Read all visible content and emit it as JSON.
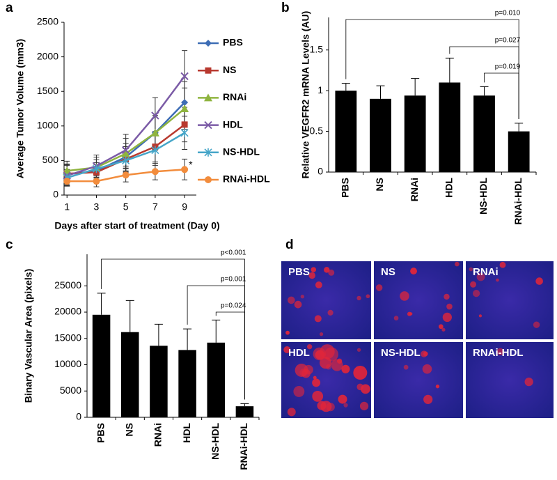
{
  "chart_data": [
    {
      "type": "line",
      "panel_label": "a",
      "x": [
        1,
        3,
        5,
        7,
        9
      ],
      "xlim": [
        0.8,
        9.8
      ],
      "xticks": [
        1,
        3,
        5,
        7,
        9
      ],
      "ylim": [
        0,
        2500
      ],
      "yticks": [
        0,
        500,
        1000,
        1500,
        2000,
        2500
      ],
      "xlabel": "Days after start of treatment (Day 0)",
      "ylabel": "Average Tumor Volume (mm3)",
      "annotation": "*",
      "legend": "right",
      "series": [
        {
          "name": "PBS",
          "color": "#3d6db5",
          "marker": "diamond",
          "values": [
            300,
            350,
            550,
            900,
            1340
          ],
          "errors": [
            150,
            120,
            200,
            250,
            300
          ]
        },
        {
          "name": "NS",
          "color": "#b8392f",
          "marker": "square",
          "values": [
            310,
            330,
            520,
            700,
            1020
          ],
          "errors": [
            130,
            110,
            180,
            220,
            250
          ]
        },
        {
          "name": "RNAi",
          "color": "#8fb43f",
          "marker": "triangle",
          "values": [
            350,
            400,
            600,
            900,
            1250
          ],
          "errors": [
            140,
            150,
            220,
            250,
            300
          ]
        },
        {
          "name": "HDL",
          "color": "#7b5ba6",
          "marker": "x",
          "values": [
            280,
            420,
            650,
            1150,
            1720
          ],
          "errors": [
            150,
            160,
            230,
            260,
            370
          ]
        },
        {
          "name": "NS-HDL",
          "color": "#45a5c8",
          "marker": "star",
          "values": [
            250,
            380,
            500,
            650,
            900
          ],
          "errors": [
            120,
            130,
            170,
            220,
            240
          ]
        },
        {
          "name": "RNAi-HDL",
          "color": "#f28c3c",
          "marker": "circle",
          "values": [
            200,
            200,
            290,
            340,
            370
          ],
          "errors": [
            60,
            80,
            100,
            120,
            150
          ]
        }
      ]
    },
    {
      "type": "bar",
      "panel_label": "b",
      "categories": [
        "PBS",
        "NS",
        "RNAi",
        "HDL",
        "NS-HDL",
        "RNAi-HDL"
      ],
      "values": [
        1.0,
        0.9,
        0.94,
        1.1,
        0.94,
        0.5
      ],
      "errors": [
        0.09,
        0.16,
        0.21,
        0.3,
        0.11,
        0.1
      ],
      "color": "#000000",
      "ylim": [
        0,
        1.9
      ],
      "yticks": [
        0,
        0.5,
        1,
        1.5
      ],
      "ylabel": "Relative VEGFR2 mRNA Levels (AU)",
      "annotations": [
        "p=0.010",
        "p=0.027",
        "p=0.019"
      ]
    },
    {
      "type": "bar",
      "panel_label": "c",
      "categories": [
        "PBS",
        "NS",
        "RNAi",
        "HDL",
        "NS-HDL",
        "RNAi-HDL"
      ],
      "values": [
        19500,
        16200,
        13600,
        12800,
        14200,
        2100
      ],
      "errors": [
        4100,
        6000,
        4100,
        4000,
        4300,
        500
      ],
      "color": "#000000",
      "ylim": [
        0,
        31000
      ],
      "yticks": [
        0,
        5000,
        10000,
        15000,
        20000,
        25000
      ],
      "ylabel": "Binary Vascular Area (pixels)",
      "annotations": [
        "p<0.001",
        "p=0.001",
        "p=0.024"
      ]
    }
  ],
  "image_panel": {
    "panel_label": "d",
    "images": [
      "PBS",
      "NS",
      "RNAi",
      "HDL",
      "NS-HDL",
      "RNAi-HDL"
    ]
  }
}
